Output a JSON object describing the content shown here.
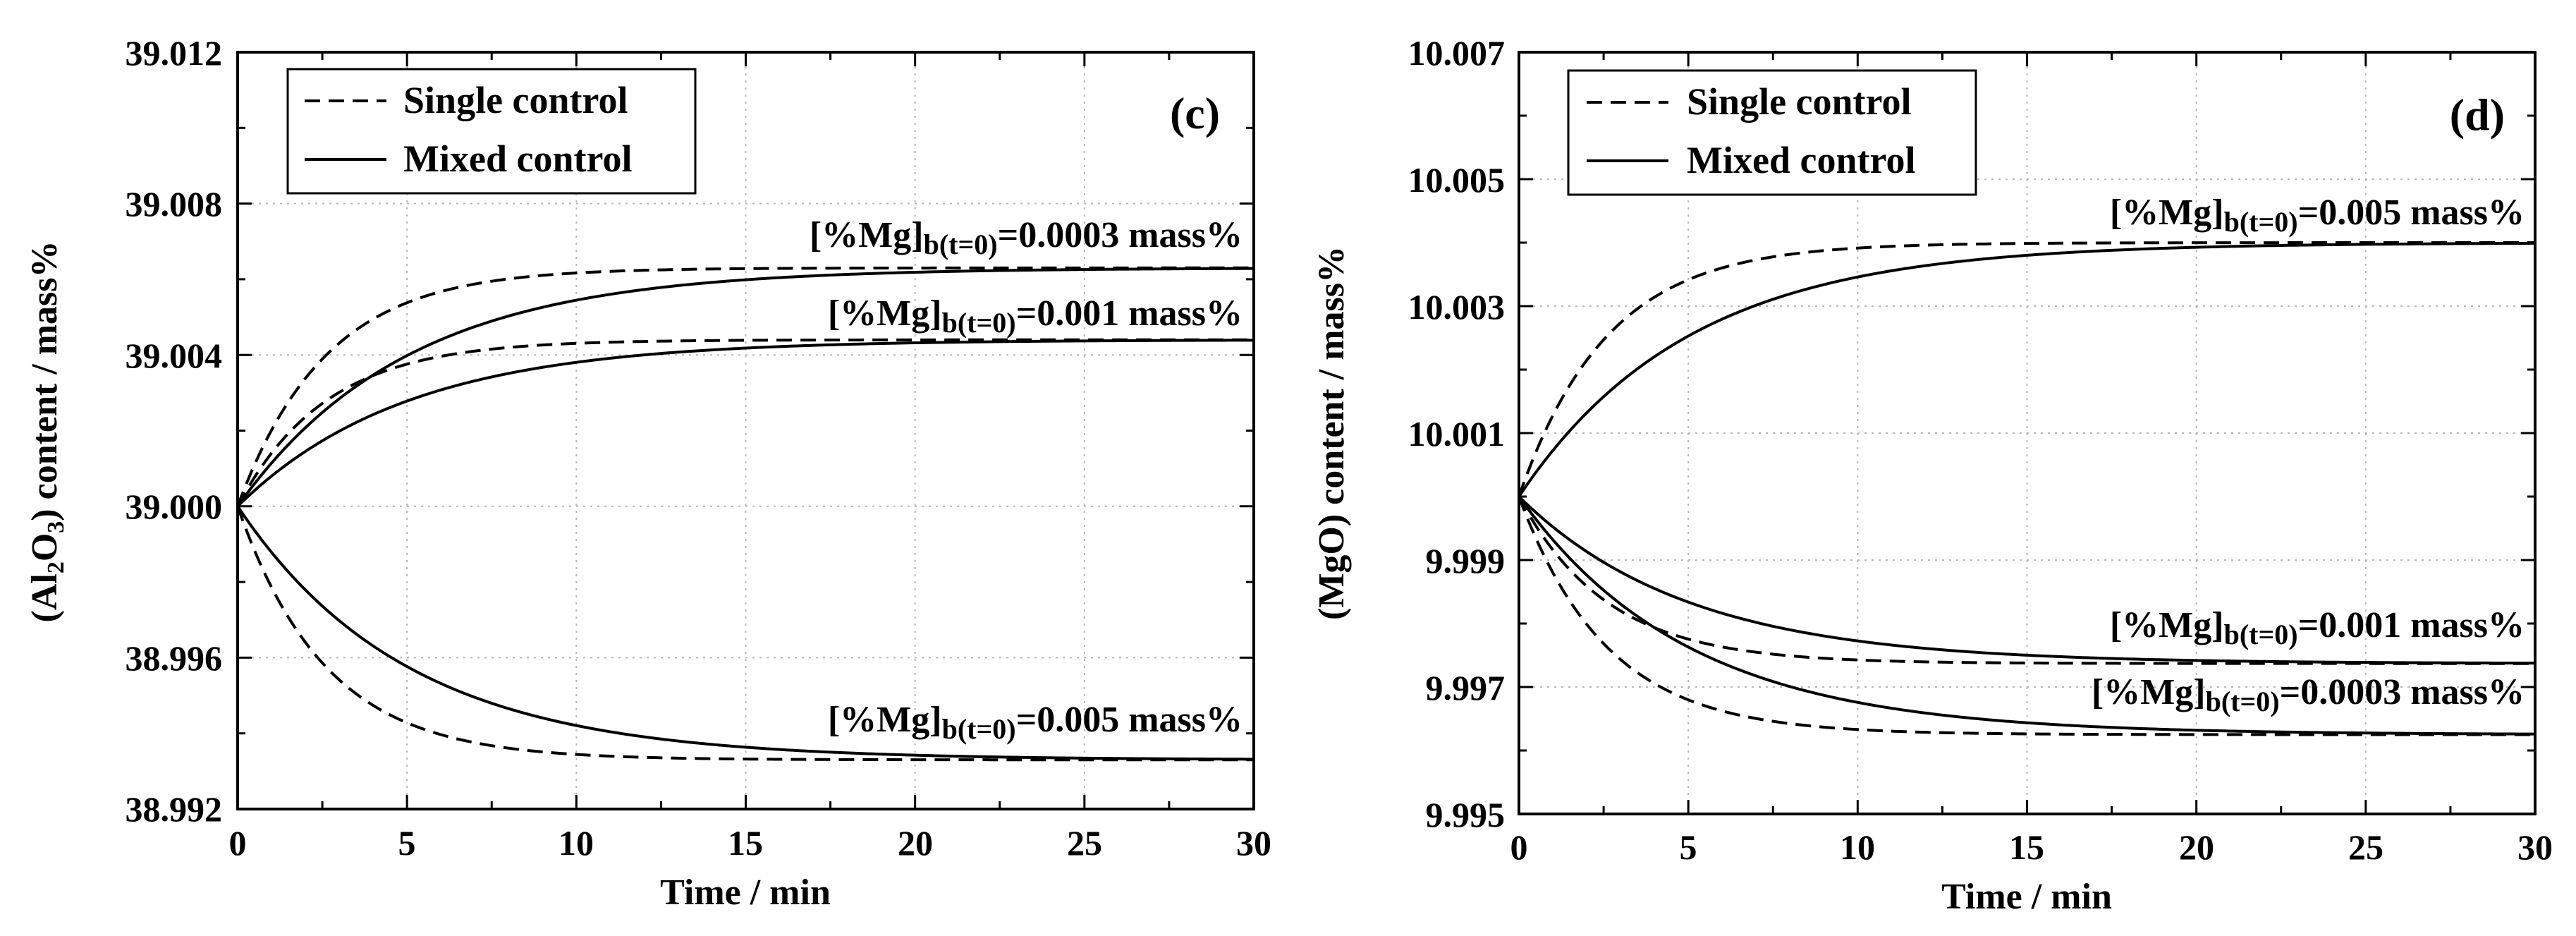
{
  "chart_data": [
    {
      "type": "line",
      "panel_label": "(c)",
      "xlabel": "Time / min",
      "ylabel": "(Al₂O₃) content / mass%",
      "ylabel_parts": {
        "pre": "(Al",
        "sub1": "2",
        "mid": "O",
        "sub2": "3",
        "post": ") content / mass%"
      },
      "xlim": [
        0,
        30
      ],
      "ylim": [
        38.992,
        39.012
      ],
      "xticks": [
        "0",
        "5",
        "10",
        "15",
        "20",
        "25",
        "30"
      ],
      "yticks": [
        "38.992",
        "38.996",
        "39.000",
        "39.004",
        "39.008",
        "39.012"
      ],
      "grid": true,
      "legend": {
        "position": "top-left",
        "entries": [
          "Single control",
          "Mixed control"
        ]
      },
      "annotations": [
        {
          "pre": "[%Mg]",
          "sub": "b(t=0)",
          "post": "=0.0003 mass%"
        },
        {
          "pre": "[%Mg]",
          "sub": "b(t=0)",
          "post": "=0.001 mass%"
        },
        {
          "pre": "[%Mg]",
          "sub": "b(t=0)",
          "post": "=0.005 mass%"
        }
      ],
      "series": [
        {
          "name": "Single control, [%Mg]b(t=0)=0.0003 mass%",
          "style": "dashed",
          "start": 39.0,
          "end": 39.0063,
          "tau": 2.6
        },
        {
          "name": "Mixed control, [%Mg]b(t=0)=0.0003 mass%",
          "style": "solid",
          "start": 39.0,
          "end": 39.0063,
          "tau": 5.0
        },
        {
          "name": "Single control, [%Mg]b(t=0)=0.001 mass%",
          "style": "dashed",
          "start": 39.0,
          "end": 39.0044,
          "tau": 2.6
        },
        {
          "name": "Mixed control, [%Mg]b(t=0)=0.001 mass%",
          "style": "solid",
          "start": 39.0,
          "end": 39.0044,
          "tau": 5.0
        },
        {
          "name": "Single control, [%Mg]b(t=0)=0.005 mass%",
          "style": "dashed",
          "start": 39.0,
          "end": 38.9933,
          "tau": 2.6
        },
        {
          "name": "Mixed control, [%Mg]b(t=0)=0.005 mass%",
          "style": "solid",
          "start": 39.0,
          "end": 38.9933,
          "tau": 5.0
        }
      ]
    },
    {
      "type": "line",
      "panel_label": "(d)",
      "xlabel": "Time / min",
      "ylabel": "(MgO) content / mass%",
      "xlim": [
        0,
        30
      ],
      "ylim": [
        9.995,
        10.007
      ],
      "xticks": [
        "0",
        "5",
        "10",
        "15",
        "20",
        "25",
        "30"
      ],
      "yticks": [
        "9.995",
        "9.997",
        "9.999",
        "10.001",
        "10.003",
        "10.005",
        "10.007"
      ],
      "grid": true,
      "legend": {
        "position": "top-left",
        "entries": [
          "Single control",
          "Mixed control"
        ]
      },
      "annotations": [
        {
          "pre": "[%Mg]",
          "sub": "b(t=0)",
          "post": "=0.005 mass%"
        },
        {
          "pre": "[%Mg]",
          "sub": "b(t=0)",
          "post": "=0.001 mass%"
        },
        {
          "pre": "[%Mg]",
          "sub": "b(t=0)",
          "post": "=0.0003 mass%"
        }
      ],
      "series": [
        {
          "name": "Single control, [%Mg]b(t=0)=0.005 mass%",
          "style": "dashed",
          "start": 10.0,
          "end": 10.004,
          "tau": 2.6
        },
        {
          "name": "Mixed control, [%Mg]b(t=0)=0.005 mass%",
          "style": "solid",
          "start": 10.0,
          "end": 10.004,
          "tau": 5.0
        },
        {
          "name": "Single control, [%Mg]b(t=0)=0.001 mass%",
          "style": "dashed",
          "start": 10.0,
          "end": 9.99737,
          "tau": 2.6
        },
        {
          "name": "Mixed control, [%Mg]b(t=0)=0.001 mass%",
          "style": "solid",
          "start": 10.0,
          "end": 9.99737,
          "tau": 5.0
        },
        {
          "name": "Single control, [%Mg]b(t=0)=0.0003 mass%",
          "style": "dashed",
          "start": 10.0,
          "end": 9.99625,
          "tau": 2.6
        },
        {
          "name": "Mixed control, [%Mg]b(t=0)=0.0003 mass%",
          "style": "solid",
          "start": 10.0,
          "end": 9.99625,
          "tau": 5.0
        }
      ]
    }
  ]
}
